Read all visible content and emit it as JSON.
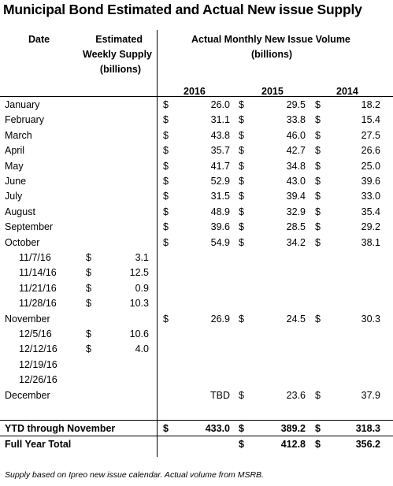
{
  "title": "Municipal Bond Estimated and Actual New issue Supply",
  "headers": {
    "date": "Date",
    "estimated": [
      "Estimated",
      "Weekly Supply",
      "(billions)"
    ],
    "actual": [
      "Actual Monthly New Issue Volume",
      "(billions)"
    ],
    "years": [
      "2016",
      "2015",
      "2014"
    ]
  },
  "currency": "$",
  "months": [
    {
      "label": "January",
      "y2016": "26.0",
      "y2015": "29.5",
      "y2014": "18.2"
    },
    {
      "label": "February",
      "y2016": "31.1",
      "y2015": "33.8",
      "y2014": "15.4"
    },
    {
      "label": "March",
      "y2016": "43.8",
      "y2015": "46.0",
      "y2014": "27.5"
    },
    {
      "label": "April",
      "y2016": "35.7",
      "y2015": "42.7",
      "y2014": "26.6"
    },
    {
      "label": "May",
      "y2016": "41.7",
      "y2015": "34.8",
      "y2014": "25.0"
    },
    {
      "label": "June",
      "y2016": "52.9",
      "y2015": "43.0",
      "y2014": "39.6"
    },
    {
      "label": "July",
      "y2016": "31.5",
      "y2015": "39.4",
      "y2014": "33.0"
    },
    {
      "label": "August",
      "y2016": "48.9",
      "y2015": "32.9",
      "y2014": "35.4"
    },
    {
      "label": "September",
      "y2016": "39.6",
      "y2015": "28.5",
      "y2014": "29.2"
    },
    {
      "label": "October",
      "y2016": "54.9",
      "y2015": "34.2",
      "y2014": "38.1"
    }
  ],
  "november_weeks": [
    {
      "date": "11/7/16",
      "value": "3.1"
    },
    {
      "date": "11/14/16",
      "value": "12.5"
    },
    {
      "date": "11/21/16",
      "value": "0.9"
    },
    {
      "date": "11/28/16",
      "value": "10.3"
    }
  ],
  "november": {
    "label": "November",
    "y2016": "26.9",
    "y2015": "24.5",
    "y2014": "30.3"
  },
  "december_weeks": [
    {
      "date": "12/5/16",
      "value": "10.6"
    },
    {
      "date": "12/12/16",
      "value": "4.0"
    },
    {
      "date": "12/19/16",
      "value": ""
    },
    {
      "date": "12/26/16",
      "value": ""
    }
  ],
  "december": {
    "label": "December",
    "y2016": "TBD",
    "y2015": "23.6",
    "y2014": "37.9"
  },
  "ytd": {
    "label": "YTD through November",
    "y2016": "433.0",
    "y2015": "389.2",
    "y2014": "318.3"
  },
  "full_year": {
    "label": "Full Year Total",
    "y2016": "",
    "y2015": "412.8",
    "y2014": "356.2"
  },
  "footnote": "Supply based on Ipreo new issue calendar. Actual volume from MSRB."
}
